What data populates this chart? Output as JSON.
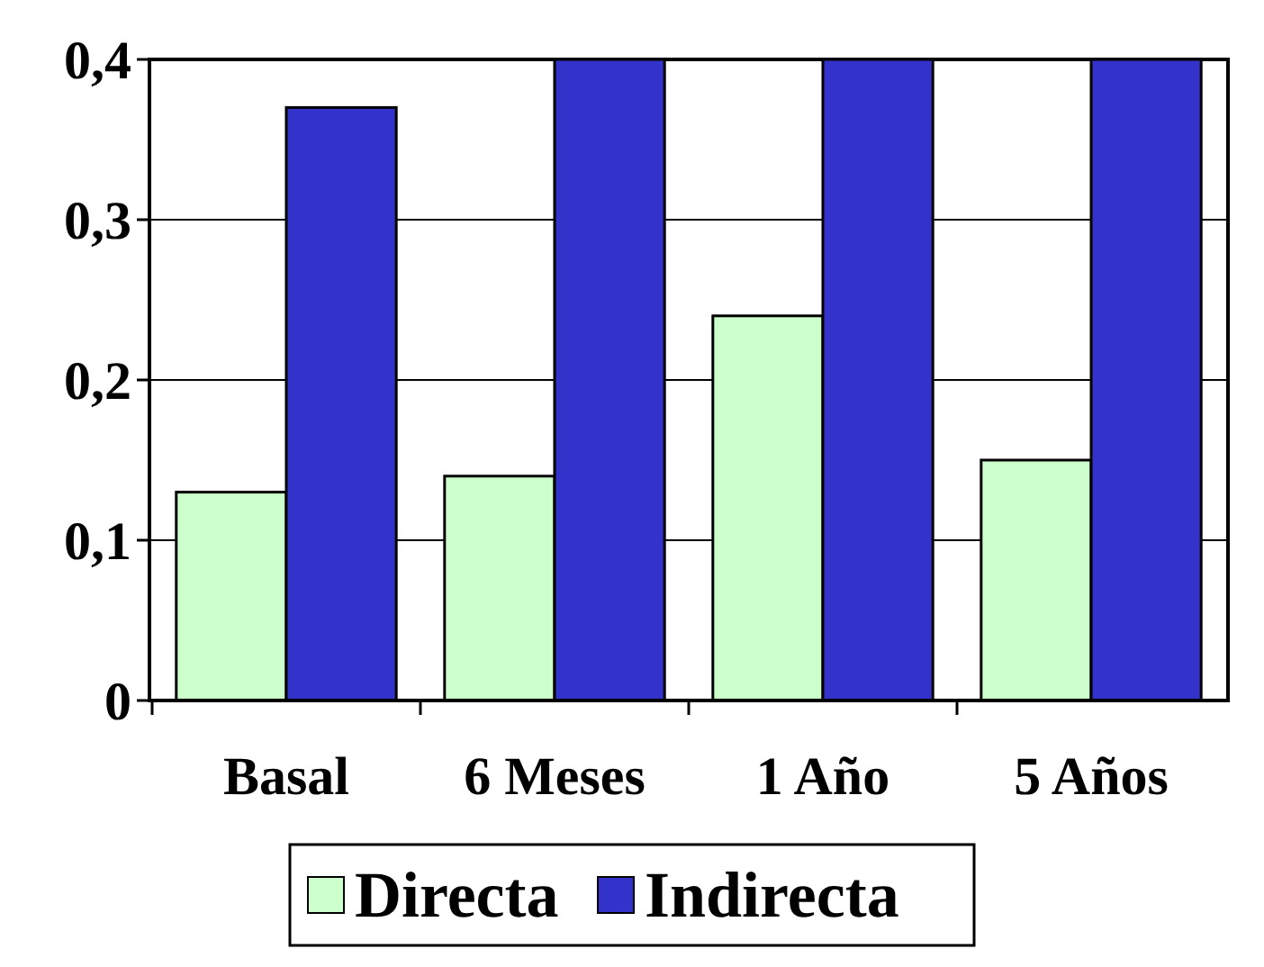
{
  "chart_data": {
    "type": "bar",
    "categories": [
      "Basal",
      "6 Meses",
      "1 Año",
      "5 Años"
    ],
    "series": [
      {
        "name": "Directa",
        "color": "#ccffcc",
        "values": [
          0.13,
          0.14,
          0.24,
          0.15
        ]
      },
      {
        "name": "Indirecta",
        "color": "#3333cc",
        "values": [
          0.37,
          0.4,
          0.4,
          0.4
        ]
      }
    ],
    "ylim": [
      0,
      0.4
    ],
    "yticks": [
      {
        "value": 0,
        "label": "0"
      },
      {
        "value": 0.1,
        "label": "0,1"
      },
      {
        "value": 0.2,
        "label": "0,2"
      },
      {
        "value": 0.3,
        "label": "0,3"
      },
      {
        "value": 0.4,
        "label": "0,4"
      }
    ],
    "grid": "y",
    "legend": "bottom"
  }
}
